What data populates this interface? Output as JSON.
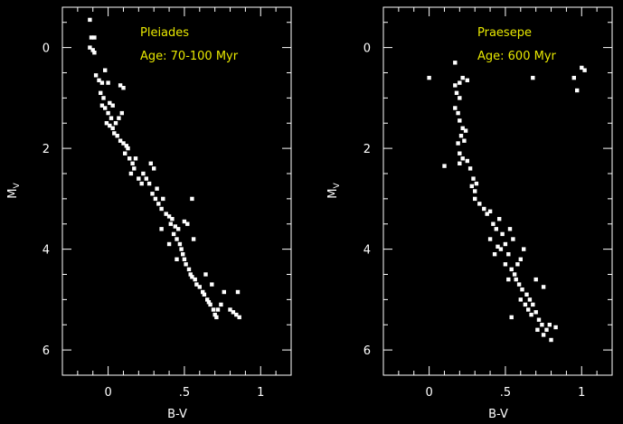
{
  "colors": {
    "background": "#000000",
    "axes": "#ffffff",
    "points": "#ffffff",
    "annotation": "#e8e800"
  },
  "chart_data": [
    {
      "type": "scatter",
      "title": "Pleiades",
      "subtitle": "Age: 70-100 Myr",
      "xlabel": "B-V",
      "ylabel": "Mv",
      "ylabel_main": "M",
      "ylabel_sub": "V",
      "xlim": [
        -0.3,
        1.2
      ],
      "ylim": [
        6.5,
        -0.8
      ],
      "y_inverted": true,
      "x_ticks": [
        0,
        0.5,
        1
      ],
      "x_tick_labels": [
        "0",
        ".5",
        "1"
      ],
      "y_ticks": [
        0,
        2,
        4,
        6
      ],
      "y_tick_labels": [
        "0",
        "2",
        "4",
        "6"
      ],
      "grid": false,
      "points": [
        [
          -0.12,
          -0.55
        ],
        [
          -0.11,
          -0.2
        ],
        [
          -0.09,
          -0.2
        ],
        [
          -0.12,
          0.0
        ],
        [
          -0.1,
          0.05
        ],
        [
          -0.09,
          0.1
        ],
        [
          -0.08,
          0.55
        ],
        [
          -0.06,
          0.65
        ],
        [
          -0.04,
          0.7
        ],
        [
          -0.02,
          0.45
        ],
        [
          0.0,
          0.7
        ],
        [
          0.08,
          0.75
        ],
        [
          0.1,
          0.8
        ],
        [
          -0.05,
          0.9
        ],
        [
          -0.03,
          1.0
        ],
        [
          -0.04,
          1.15
        ],
        [
          -0.02,
          1.2
        ],
        [
          0.01,
          1.1
        ],
        [
          0.03,
          1.15
        ],
        [
          0.0,
          1.3
        ],
        [
          0.02,
          1.4
        ],
        [
          -0.01,
          1.5
        ],
        [
          0.01,
          1.55
        ],
        [
          0.03,
          1.6
        ],
        [
          0.04,
          1.7
        ],
        [
          0.05,
          1.5
        ],
        [
          0.07,
          1.4
        ],
        [
          0.09,
          1.3
        ],
        [
          0.06,
          1.75
        ],
        [
          0.08,
          1.85
        ],
        [
          0.1,
          1.9
        ],
        [
          0.12,
          1.95
        ],
        [
          0.11,
          2.1
        ],
        [
          0.13,
          2.0
        ],
        [
          0.14,
          2.2
        ],
        [
          0.16,
          2.3
        ],
        [
          0.15,
          2.5
        ],
        [
          0.17,
          2.4
        ],
        [
          0.18,
          2.2
        ],
        [
          0.2,
          2.6
        ],
        [
          0.22,
          2.7
        ],
        [
          0.23,
          2.5
        ],
        [
          0.25,
          2.6
        ],
        [
          0.27,
          2.7
        ],
        [
          0.28,
          2.3
        ],
        [
          0.3,
          2.4
        ],
        [
          0.32,
          2.8
        ],
        [
          0.29,
          2.9
        ],
        [
          0.31,
          3.0
        ],
        [
          0.33,
          3.1
        ],
        [
          0.35,
          3.2
        ],
        [
          0.36,
          3.0
        ],
        [
          0.38,
          3.3
        ],
        [
          0.4,
          3.35
        ],
        [
          0.41,
          3.5
        ],
        [
          0.42,
          3.4
        ],
        [
          0.44,
          3.55
        ],
        [
          0.43,
          3.7
        ],
        [
          0.45,
          3.8
        ],
        [
          0.46,
          3.6
        ],
        [
          0.47,
          3.9
        ],
        [
          0.48,
          4.0
        ],
        [
          0.49,
          4.1
        ],
        [
          0.5,
          4.2
        ],
        [
          0.51,
          4.3
        ],
        [
          0.52,
          3.5
        ],
        [
          0.55,
          3.0
        ],
        [
          0.53,
          4.4
        ],
        [
          0.54,
          4.5
        ],
        [
          0.55,
          4.55
        ],
        [
          0.56,
          3.8
        ],
        [
          0.57,
          4.6
        ],
        [
          0.58,
          4.7
        ],
        [
          0.6,
          4.75
        ],
        [
          0.62,
          4.85
        ],
        [
          0.63,
          4.9
        ],
        [
          0.64,
          4.5
        ],
        [
          0.65,
          5.0
        ],
        [
          0.66,
          5.05
        ],
        [
          0.67,
          5.1
        ],
        [
          0.68,
          4.7
        ],
        [
          0.69,
          5.2
        ],
        [
          0.7,
          5.3
        ],
        [
          0.71,
          5.35
        ],
        [
          0.72,
          5.2
        ],
        [
          0.74,
          5.1
        ],
        [
          0.76,
          4.85
        ],
        [
          0.8,
          5.2
        ],
        [
          0.82,
          5.25
        ],
        [
          0.84,
          5.3
        ],
        [
          0.85,
          4.85
        ],
        [
          0.86,
          5.35
        ],
        [
          0.35,
          3.6
        ],
        [
          0.4,
          3.9
        ],
        [
          0.45,
          4.2
        ],
        [
          0.5,
          3.45
        ]
      ]
    },
    {
      "type": "scatter",
      "title": "Praesepe",
      "subtitle": "Age: 600 Myr",
      "xlabel": "B-V",
      "ylabel": "Mv",
      "ylabel_main": "M",
      "ylabel_sub": "V",
      "xlim": [
        -0.3,
        1.2
      ],
      "ylim": [
        6.5,
        -0.8
      ],
      "y_inverted": true,
      "x_ticks": [
        0,
        0.5,
        1
      ],
      "x_tick_labels": [
        "0",
        ".5",
        "1"
      ],
      "y_ticks": [
        0,
        2,
        4,
        6
      ],
      "y_tick_labels": [
        "0",
        "2",
        "4",
        "6"
      ],
      "grid": false,
      "points": [
        [
          0.17,
          0.3
        ],
        [
          0.0,
          0.6
        ],
        [
          0.17,
          0.75
        ],
        [
          0.2,
          0.7
        ],
        [
          0.22,
          0.6
        ],
        [
          0.25,
          0.65
        ],
        [
          0.18,
          0.9
        ],
        [
          0.2,
          1.0
        ],
        [
          0.17,
          1.2
        ],
        [
          0.19,
          1.3
        ],
        [
          0.2,
          1.45
        ],
        [
          0.22,
          1.6
        ],
        [
          0.24,
          1.65
        ],
        [
          0.21,
          1.75
        ],
        [
          0.23,
          1.85
        ],
        [
          0.19,
          1.9
        ],
        [
          0.2,
          2.1
        ],
        [
          0.22,
          2.2
        ],
        [
          0.2,
          2.3
        ],
        [
          0.1,
          2.35
        ],
        [
          0.25,
          2.25
        ],
        [
          0.27,
          2.4
        ],
        [
          0.29,
          2.6
        ],
        [
          0.28,
          2.75
        ],
        [
          0.3,
          2.85
        ],
        [
          0.31,
          2.7
        ],
        [
          0.3,
          3.0
        ],
        [
          0.33,
          3.1
        ],
        [
          0.36,
          3.2
        ],
        [
          0.38,
          3.3
        ],
        [
          0.4,
          3.25
        ],
        [
          0.42,
          3.5
        ],
        [
          0.44,
          3.6
        ],
        [
          0.4,
          3.8
        ],
        [
          0.46,
          3.4
        ],
        [
          0.48,
          3.7
        ],
        [
          0.43,
          4.1
        ],
        [
          0.47,
          4.0
        ],
        [
          0.5,
          3.9
        ],
        [
          0.52,
          4.1
        ],
        [
          0.53,
          3.6
        ],
        [
          0.55,
          3.8
        ],
        [
          0.5,
          4.3
        ],
        [
          0.54,
          4.4
        ],
        [
          0.56,
          4.5
        ],
        [
          0.57,
          4.6
        ],
        [
          0.58,
          4.3
        ],
        [
          0.6,
          4.2
        ],
        [
          0.62,
          4.0
        ],
        [
          0.59,
          4.7
        ],
        [
          0.61,
          4.8
        ],
        [
          0.6,
          5.0
        ],
        [
          0.63,
          5.1
        ],
        [
          0.64,
          4.9
        ],
        [
          0.66,
          5.0
        ],
        [
          0.68,
          5.1
        ],
        [
          0.65,
          5.2
        ],
        [
          0.67,
          5.3
        ],
        [
          0.7,
          5.25
        ],
        [
          0.72,
          5.4
        ],
        [
          0.74,
          5.5
        ],
        [
          0.71,
          5.6
        ],
        [
          0.75,
          5.7
        ],
        [
          0.77,
          5.6
        ],
        [
          0.79,
          5.5
        ],
        [
          0.8,
          5.8
        ],
        [
          0.83,
          5.55
        ],
        [
          0.54,
          5.35
        ],
        [
          0.68,
          0.6
        ],
        [
          0.95,
          0.6
        ],
        [
          0.97,
          0.85
        ],
        [
          1.0,
          0.4
        ],
        [
          1.02,
          0.45
        ],
        [
          0.7,
          4.6
        ],
        [
          0.75,
          4.75
        ],
        [
          0.45,
          3.95
        ],
        [
          0.52,
          4.6
        ]
      ]
    }
  ]
}
